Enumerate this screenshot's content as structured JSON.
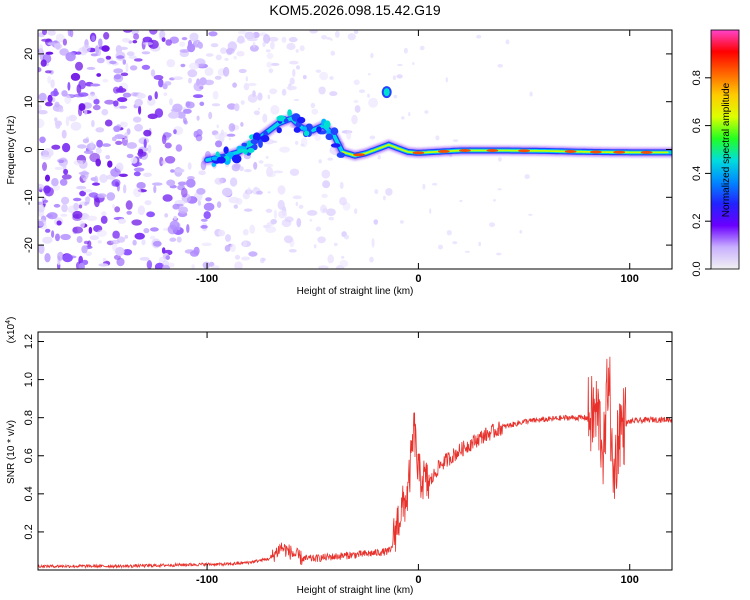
{
  "chart_data": [
    {
      "type": "heatmap",
      "title": "KOM5.2026.098.15.42.G19",
      "xlabel": "Height of straight line (km)",
      "ylabel": "Frequency (Hz)",
      "xlim": [
        -180,
        120
      ],
      "ylim": [
        -25,
        25
      ],
      "xticks": [
        -100,
        0,
        100
      ],
      "xtick_labels": [
        "-100",
        "0",
        "100"
      ],
      "yticks": [
        -20,
        -10,
        0,
        10,
        20
      ],
      "ytick_labels": [
        "-20",
        "-10",
        "0",
        "10",
        "20"
      ],
      "track_points": [
        {
          "x": -100,
          "y": -2.2
        },
        {
          "x": -92,
          "y": -1.5
        },
        {
          "x": -85,
          "y": -0.5
        },
        {
          "x": -78,
          "y": 1.5
        },
        {
          "x": -72,
          "y": 3.5
        },
        {
          "x": -66,
          "y": 5.5
        },
        {
          "x": -60,
          "y": 6.5
        },
        {
          "x": -55,
          "y": 4.5
        },
        {
          "x": -50,
          "y": 4.0
        },
        {
          "x": -45,
          "y": 5.0
        },
        {
          "x": -40,
          "y": 3.0
        },
        {
          "x": -36,
          "y": -0.5
        },
        {
          "x": -30,
          "y": -1.3
        },
        {
          "x": -25,
          "y": -0.8
        },
        {
          "x": -20,
          "y": 0.0
        },
        {
          "x": -14,
          "y": 1.0
        },
        {
          "x": -10,
          "y": 0.3
        },
        {
          "x": -5,
          "y": -0.5
        },
        {
          "x": 0,
          "y": -0.7
        },
        {
          "x": 20,
          "y": -0.2
        },
        {
          "x": 40,
          "y": -0.2
        },
        {
          "x": 60,
          "y": -0.3
        },
        {
          "x": 80,
          "y": -0.5
        },
        {
          "x": 100,
          "y": -0.6
        },
        {
          "x": 120,
          "y": -0.6
        }
      ],
      "isolated_blob": {
        "x": -15,
        "y": 12
      },
      "colorbar": {
        "label": "Normalized spectral amplitude",
        "range": [
          0,
          1
        ],
        "ticks": [
          0.0,
          0.2,
          0.4,
          0.6,
          0.8
        ],
        "tick_labels": [
          "0.0",
          "0.2",
          "0.4",
          "0.6",
          "0.8"
        ]
      }
    },
    {
      "type": "line",
      "xlabel": "Height of straight line (km)",
      "ylabel": "SNR (10 * v/v)",
      "multiplier": "(x10⁴)",
      "multiplier_base": "(x10",
      "multiplier_exp": "4",
      "xlim": [
        -180,
        120
      ],
      "ylim": [
        0,
        1.25
      ],
      "xticks": [
        -100,
        0,
        100
      ],
      "xtick_labels": [
        "-100",
        "0",
        "100"
      ],
      "yticks": [
        0.2,
        0.4,
        0.6,
        0.8,
        1.0,
        1.2
      ],
      "ytick_labels": [
        "0.2",
        "0.4",
        "0.6",
        "0.8",
        "1.0",
        "1.2"
      ],
      "series": [
        {
          "name": "SNR",
          "color": "#e8312b",
          "x": [
            -180,
            -160,
            -140,
            -120,
            -100,
            -90,
            -80,
            -70,
            -65,
            -60,
            -55,
            -50,
            -40,
            -30,
            -20,
            -13,
            -10,
            -5,
            -2,
            0,
            5,
            10,
            20,
            30,
            40,
            50,
            60,
            70,
            80,
            85,
            88,
            90,
            92,
            95,
            100,
            110,
            120
          ],
          "y": [
            0.02,
            0.02,
            0.02,
            0.025,
            0.03,
            0.03,
            0.04,
            0.06,
            0.12,
            0.09,
            0.06,
            0.06,
            0.07,
            0.08,
            0.09,
            0.1,
            0.25,
            0.4,
            0.75,
            0.5,
            0.45,
            0.55,
            0.63,
            0.7,
            0.75,
            0.78,
            0.79,
            0.8,
            0.8,
            0.82,
            0.6,
            1.1,
            0.45,
            0.75,
            0.78,
            0.79,
            0.79
          ]
        }
      ]
    }
  ],
  "colors": {
    "line": "#e8312b",
    "colorbar_stops": [
      "#f2f2f2",
      "#c8b0ff",
      "#6a00ff",
      "#2222ff",
      "#0088ff",
      "#00dddd",
      "#22ff22",
      "#ddff00",
      "#ffcc00",
      "#ff6600",
      "#ff0000",
      "#ff44cc"
    ]
  }
}
